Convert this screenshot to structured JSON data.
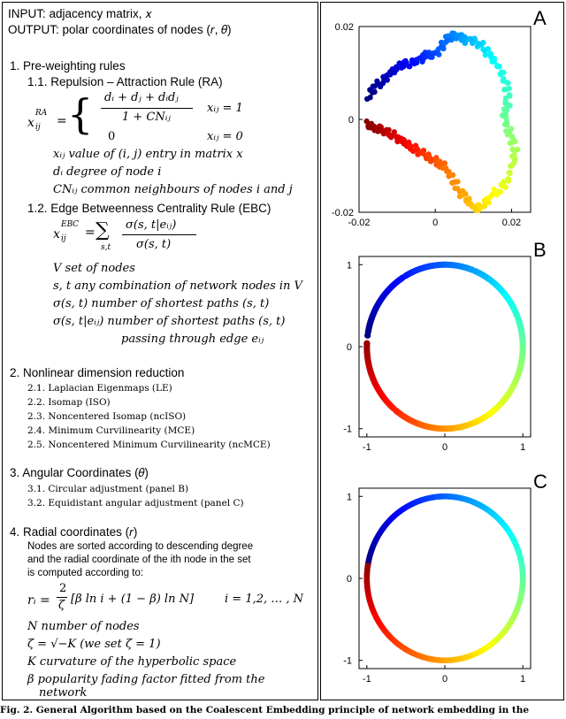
{
  "left": {
    "input": "INPUT:  adjacency matrix, 𝑥",
    "output": "OUTPUT:  polar coordinates of nodes  (𝑟, 𝜃)",
    "s1": "1.  Pre-weighting rules",
    "s11": "1.1. Repulsion – Attraction Rule (RA)",
    "ra_lhs": "𝑥",
    "ra_lhs_sub": "𝑖𝑗",
    "ra_lhs_sup": "𝑅𝐴",
    "ra_num": "𝑑ᵢ + 𝑑ⱼ + 𝑑ᵢ𝑑ⱼ",
    "ra_den": "1 + 𝐶𝑁ᵢⱼ",
    "ra_cond1": "𝑥ᵢⱼ = 1",
    "ra_zero": "0",
    "ra_cond0": "𝑥ᵢⱼ = 0",
    "def1": "𝑥ᵢⱼ value of (𝑖, 𝑗) entry in matrix 𝑥",
    "def2": "𝑑ᵢ degree of node 𝑖",
    "def3": "𝐶𝑁ᵢⱼ common neighbours of nodes 𝑖 and 𝑗",
    "s12": "1.2. Edge Betweenness Centrality Rule (EBC)",
    "ebc_lhs": "𝑥",
    "ebc_lhs_sub": "𝑖𝑗",
    "ebc_lhs_sup": "𝐸𝐵𝐶",
    "ebc_eq": "=",
    "ebc_sum": "∑",
    "ebc_sum_sub": "𝑠,𝑡",
    "ebc_num": "𝜎(𝑠, 𝑡|𝑒ᵢⱼ)",
    "ebc_den": "𝜎(𝑠, 𝑡)",
    "def4": "𝑉 set of nodes",
    "def5": "𝑠, 𝑡 any combination of network nodes in 𝑉",
    "def6": "𝜎(𝑠, 𝑡) number of shortest paths (𝑠, 𝑡)",
    "def7": "𝜎(𝑠, 𝑡|𝑒ᵢⱼ) number of shortest paths (𝑠, 𝑡)",
    "def7b": "passing through edge 𝑒ᵢⱼ",
    "s2": "2.  Nonlinear dimension reduction",
    "s2_items": [
      "2.1. Laplacian Eigenmaps (LE)",
      "2.2. Isomap (ISO)",
      "2.3. Noncentered Isomap (ncISO)",
      "2.4. Minimum Curvilinearity (MCE)",
      "2.5. Noncentered Minimum Curvilinearity (ncMCE)"
    ],
    "s3": "3.  Angular Coordinates (𝜃)",
    "s3_items": [
      "3.1. Circular adjustment (panel B)",
      "3.2. Equidistant angular adjustment (panel C)"
    ],
    "s4": "4.  Radial coordinates (𝑟)",
    "s4_text": [
      "Nodes are sorted according to descending degree",
      "and the radial coordinate of the ith node in the set",
      "is computed according to:"
    ],
    "r_lhs": "𝑟ᵢ =",
    "r_num": "2",
    "r_den": "𝜁",
    "r_body": "[𝛽 ln 𝑖 + (1 − 𝛽) ln 𝑁]",
    "r_range": "𝑖 = 1,2, … , 𝑁",
    "def8": "𝑁 number of nodes",
    "def9": "𝜁 = √−𝐾  (we set 𝜁 = 1)",
    "def10": "𝐾 curvature of the hyperbolic space",
    "def11": "𝛽 popularity fading factor fitted from the",
    "def11b": "network"
  },
  "panels": {
    "a_label": "A",
    "b_label": "B",
    "c_label": "C"
  },
  "chart_data": [
    {
      "type": "scatter",
      "panel": "A",
      "xlim": [
        -0.02,
        0.025
      ],
      "ylim": [
        -0.02,
        0.02
      ],
      "xticks": [
        "-0.02",
        "0",
        "0.02"
      ],
      "yticks": [
        "0.02",
        "0",
        "-0.02"
      ],
      "grid": false,
      "color_map": "jet",
      "description_points": [
        {
          "x": -0.018,
          "y": 0.004
        },
        {
          "x": -0.016,
          "y": 0.007
        },
        {
          "x": -0.014,
          "y": 0.008
        },
        {
          "x": -0.012,
          "y": 0.01
        },
        {
          "x": -0.01,
          "y": 0.011
        },
        {
          "x": -0.008,
          "y": 0.012
        },
        {
          "x": -0.006,
          "y": 0.012
        },
        {
          "x": -0.004,
          "y": 0.013
        },
        {
          "x": -0.002,
          "y": 0.014
        },
        {
          "x": 0.0,
          "y": 0.014
        },
        {
          "x": 0.002,
          "y": 0.016
        },
        {
          "x": 0.004,
          "y": 0.018
        },
        {
          "x": 0.006,
          "y": 0.018
        },
        {
          "x": 0.008,
          "y": 0.017
        },
        {
          "x": 0.01,
          "y": 0.017
        },
        {
          "x": 0.012,
          "y": 0.016
        },
        {
          "x": 0.014,
          "y": 0.014
        },
        {
          "x": 0.016,
          "y": 0.012
        },
        {
          "x": 0.018,
          "y": 0.009
        },
        {
          "x": 0.019,
          "y": 0.006
        },
        {
          "x": 0.019,
          "y": 0.003
        },
        {
          "x": 0.018,
          "y": 0.001
        },
        {
          "x": 0.019,
          "y": -0.002
        },
        {
          "x": 0.02,
          "y": -0.004
        },
        {
          "x": 0.021,
          "y": -0.007
        },
        {
          "x": 0.02,
          "y": -0.01
        },
        {
          "x": 0.019,
          "y": -0.013
        },
        {
          "x": 0.017,
          "y": -0.015
        },
        {
          "x": 0.014,
          "y": -0.017
        },
        {
          "x": 0.012,
          "y": -0.019
        },
        {
          "x": 0.01,
          "y": -0.019
        },
        {
          "x": 0.008,
          "y": -0.017
        },
        {
          "x": 0.006,
          "y": -0.015
        },
        {
          "x": 0.004,
          "y": -0.012
        },
        {
          "x": 0.002,
          "y": -0.01
        },
        {
          "x": 0.0,
          "y": -0.009
        },
        {
          "x": -0.002,
          "y": -0.008
        },
        {
          "x": -0.004,
          "y": -0.007
        },
        {
          "x": -0.006,
          "y": -0.006
        },
        {
          "x": -0.008,
          "y": -0.005
        },
        {
          "x": -0.01,
          "y": -0.004
        },
        {
          "x": -0.012,
          "y": -0.003
        },
        {
          "x": -0.014,
          "y": -0.002
        },
        {
          "x": -0.016,
          "y": -0.002
        },
        {
          "x": -0.018,
          "y": -0.001
        }
      ]
    },
    {
      "type": "scatter",
      "panel": "B",
      "xlim": [
        -1.1,
        1.1
      ],
      "ylim": [
        -1.1,
        1.1
      ],
      "xticks": [
        "-1",
        "0",
        "1"
      ],
      "yticks": [
        "1",
        "0",
        "-1"
      ],
      "grid": false,
      "color_map": "jet",
      "shape": "circle with irregular spacing"
    },
    {
      "type": "scatter",
      "panel": "C",
      "xlim": [
        -1.1,
        1.1
      ],
      "ylim": [
        -1.1,
        1.1
      ],
      "xticks": [
        "-1",
        "0",
        "1"
      ],
      "yticks": [
        "1",
        "0",
        "-1"
      ],
      "grid": false,
      "color_map": "jet",
      "shape": "circle with equidistant spacing"
    }
  ],
  "caption": "Fig. 2. General Algorithm based on the Coalescent Embedding principle of network embedding in the"
}
